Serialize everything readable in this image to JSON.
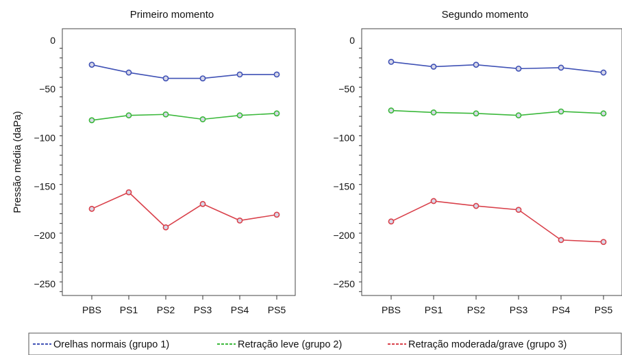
{
  "chart_data": {
    "type": "line",
    "ylabel": "Pressão média (daPa)",
    "ylim": [
      -262,
      12
    ],
    "yticks": [
      0,
      -50,
      -100,
      -150,
      -200,
      -250
    ],
    "categories": [
      "PBS",
      "PS1",
      "PS2",
      "PS3",
      "PS4",
      "PS5"
    ],
    "legend": {
      "position": "bottom",
      "entries": [
        {
          "label": "Orelhas normais (grupo 1)",
          "color": "#3f51b5"
        },
        {
          "label": "Retração leve (grupo 2)",
          "color": "#3ab83a"
        },
        {
          "label": "Retração moderada/grave (grupo 3)",
          "color": "#d9404a"
        }
      ]
    },
    "panels": [
      {
        "title": "Primeiro momento",
        "series": [
          {
            "name": "Orelhas normais (grupo 1)",
            "color": "#3f51b5",
            "values": [
              -25,
              -33,
              -39,
              -39,
              -35,
              -35
            ]
          },
          {
            "name": "Retração leve (grupo 2)",
            "color": "#3ab83a",
            "values": [
              -82,
              -77,
              -76,
              -81,
              -77,
              -75
            ]
          },
          {
            "name": "Retração moderada/grave (grupo 3)",
            "color": "#d9404a",
            "values": [
              -173,
              -156,
              -192,
              -168,
              -185,
              -179
            ]
          }
        ]
      },
      {
        "title": "Segundo momento",
        "series": [
          {
            "name": "Orelhas normais (grupo 1)",
            "color": "#3f51b5",
            "values": [
              -22,
              -27,
              -25,
              -29,
              -28,
              -33
            ]
          },
          {
            "name": "Retração leve (grupo 2)",
            "color": "#3ab83a",
            "values": [
              -72,
              -74,
              -75,
              -77,
              -73,
              -75
            ]
          },
          {
            "name": "Retração moderada/grave (grupo 3)",
            "color": "#d9404a",
            "values": [
              -186,
              -165,
              -170,
              -174,
              -205,
              -207
            ]
          }
        ]
      }
    ]
  }
}
